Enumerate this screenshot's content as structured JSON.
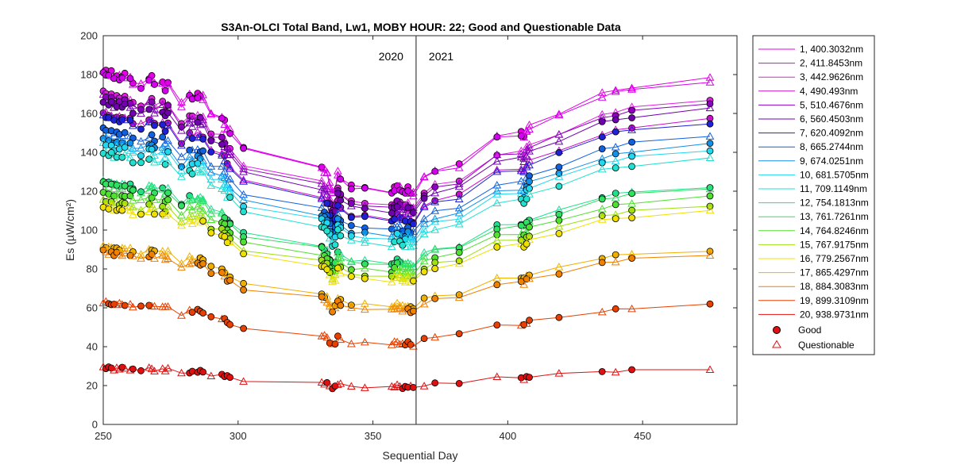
{
  "chart_data": {
    "type": "line",
    "title": "S3An-OLCI Total Band,  Lw1, MOBY HOUR: 22;  Good and Questionable Data",
    "xlabel": "Sequential Day",
    "ylabel": "Es (µW/cm²)",
    "xlim": [
      250,
      485
    ],
    "ylim": [
      0,
      200
    ],
    "xticks": [
      250,
      300,
      350,
      400,
      450
    ],
    "yticks": [
      0,
      20,
      40,
      60,
      80,
      100,
      120,
      140,
      160,
      180,
      200
    ],
    "divider": {
      "x": 366,
      "left_label": "2020",
      "right_label": "2021"
    },
    "legend": {
      "position": "outside-right",
      "good_label": "Good",
      "questionable_label": "Questionable"
    },
    "x": [
      250,
      251,
      252,
      253,
      254,
      255,
      256,
      257,
      258,
      260,
      261,
      264,
      267,
      268,
      269,
      272,
      273,
      274,
      279,
      282,
      283,
      285,
      286,
      287,
      290,
      294,
      295,
      296,
      297,
      302,
      331,
      332,
      333,
      334,
      335,
      336,
      337,
      338,
      342,
      347,
      357,
      358,
      359,
      360,
      361,
      362,
      363,
      364,
      365,
      369,
      373,
      382,
      396,
      405,
      406,
      407,
      408,
      419,
      435,
      440,
      446,
      475
    ],
    "series": [
      {
        "name": "1, 400.3032nm",
        "color": "#e600e6",
        "base": 125
      },
      {
        "name": "2, 411.8453nm",
        "color": "#d600f0",
        "base": 124
      },
      {
        "name": "3, 442.9626nm",
        "color": "#e020e0",
        "base": 117
      },
      {
        "name": "4,  490.493nm",
        "color": "#c810c8",
        "base": 110
      },
      {
        "name": "5, 510.4676nm",
        "color": "#9000c0",
        "base": 116
      },
      {
        "name": "6, 560.4503nm",
        "color": "#7000b0",
        "base": 114
      },
      {
        "name": "7, 620.4092nm",
        "color": "#2020d8",
        "base": 109
      },
      {
        "name": "8, 665.2744nm",
        "color": "#1060e0",
        "base": 104
      },
      {
        "name": "9, 674.0251nm",
        "color": "#1090e8",
        "base": 101
      },
      {
        "name": "10, 681.5705nm",
        "color": "#20d8f0",
        "base": 99
      },
      {
        "name": "11, 709.1149nm",
        "color": "#20e0d0",
        "base": 96
      },
      {
        "name": "12, 754.1813nm",
        "color": "#20e090",
        "base": 86
      },
      {
        "name": "13, 761.7261nm",
        "color": "#30e060",
        "base": 85
      },
      {
        "name": "14, 764.8246nm",
        "color": "#50e030",
        "base": 82
      },
      {
        "name": "15, 767.9175nm",
        "color": "#a0e010",
        "base": 79
      },
      {
        "name": "16, 779.2567nm",
        "color": "#f0e000",
        "base": 77
      },
      {
        "name": "17, 865.4297nm",
        "color": "#f0b000",
        "base": 63
      },
      {
        "name": "18, 884.3083nm",
        "color": "#f08000",
        "base": 61
      },
      {
        "name": "19, 899.3109nm",
        "color": "#e84000",
        "base": 43
      },
      {
        "name": "20, 938.9731nm",
        "color": "#e01010",
        "base": 20
      }
    ],
    "series_points": [
      {
        "x": 250,
        "y": 183
      },
      {
        "x": 251,
        "y": 182
      },
      {
        "x": 252,
        "y": 180
      },
      {
        "x": 253,
        "y": 181
      },
      {
        "x": 254,
        "y": 178
      },
      {
        "x": 255,
        "y": 180
      },
      {
        "x": 256,
        "y": 179
      },
      {
        "x": 257,
        "y": 179
      },
      {
        "x": 258,
        "y": 180
      },
      {
        "x": 260,
        "y": 178
      },
      {
        "x": 261,
        "y": 175
      },
      {
        "x": 264,
        "y": 173
      },
      {
        "x": 267,
        "y": 177
      },
      {
        "x": 268,
        "y": 178
      },
      {
        "x": 269,
        "y": 174
      },
      {
        "x": 272,
        "y": 176
      },
      {
        "x": 273,
        "y": 172
      },
      {
        "x": 274,
        "y": 175
      },
      {
        "x": 279,
        "y": 163
      },
      {
        "x": 282,
        "y": 169
      },
      {
        "x": 283,
        "y": 167
      },
      {
        "x": 285,
        "y": 169
      },
      {
        "x": 286,
        "y": 168
      },
      {
        "x": 287,
        "y": 167
      },
      {
        "x": 290,
        "y": 158
      },
      {
        "x": 294,
        "y": 157
      },
      {
        "x": 295,
        "y": 154
      },
      {
        "x": 296,
        "y": 150
      },
      {
        "x": 297,
        "y": 149
      },
      {
        "x": 302,
        "y": 141
      },
      {
        "x": 331,
        "y": 133
      },
      {
        "x": 332,
        "y": 131
      },
      {
        "x": 333,
        "y": 130
      },
      {
        "x": 334,
        "y": 124
      },
      {
        "x": 335,
        "y": 119
      },
      {
        "x": 336,
        "y": 121
      },
      {
        "x": 337,
        "y": 130
      },
      {
        "x": 338,
        "y": 127
      },
      {
        "x": 342,
        "y": 129
      },
      {
        "x": 347,
        "y": 128
      },
      {
        "x": 357,
        "y": 125
      },
      {
        "x": 358,
        "y": 127
      },
      {
        "x": 359,
        "y": 129
      },
      {
        "x": 360,
        "y": 128
      },
      {
        "x": 361,
        "y": 126
      },
      {
        "x": 362,
        "y": 126
      },
      {
        "x": 363,
        "y": 128
      },
      {
        "x": 364,
        "y": 125
      },
      {
        "x": 365,
        "y": 124
      },
      {
        "x": 369,
        "y": 127
      },
      {
        "x": 373,
        "y": 131
      },
      {
        "x": 382,
        "y": 134
      },
      {
        "x": 396,
        "y": 149
      },
      {
        "x": 405,
        "y": 150
      },
      {
        "x": 406,
        "y": 148
      },
      {
        "x": 407,
        "y": 152
      },
      {
        "x": 408,
        "y": 154
      },
      {
        "x": 419,
        "y": 160
      },
      {
        "x": 435,
        "y": 170
      },
      {
        "x": 440,
        "y": 172
      },
      {
        "x": 446,
        "y": 174
      },
      {
        "x": 475,
        "y": 178
      }
    ],
    "relative_scale": [
      1.46,
      1.455,
      1.445,
      1.45,
      1.43,
      1.44,
      1.435,
      1.435,
      1.44,
      1.43,
      1.41,
      1.4,
      1.425,
      1.43,
      1.405,
      1.415,
      1.39,
      1.41,
      1.32,
      1.36,
      1.35,
      1.36,
      1.355,
      1.35,
      1.28,
      1.27,
      1.25,
      1.22,
      1.21,
      1.14,
      1.065,
      1.05,
      1.04,
      0.99,
      0.955,
      0.97,
      1.04,
      1.015,
      0.98,
      0.975,
      0.96,
      0.975,
      0.985,
      0.975,
      0.96,
      0.96,
      0.975,
      0.955,
      0.95,
      1.02,
      1.05,
      1.07,
      1.19,
      1.2,
      1.185,
      1.215,
      1.23,
      1.28,
      1.36,
      1.375,
      1.39,
      1.425
    ],
    "quality": "QGGGQGQGGQGQGGQGQGQQGGGQQQGQQGGQQQQQQQGGGGGQGGGGQQQGQGGQQQQQQQ"
  }
}
